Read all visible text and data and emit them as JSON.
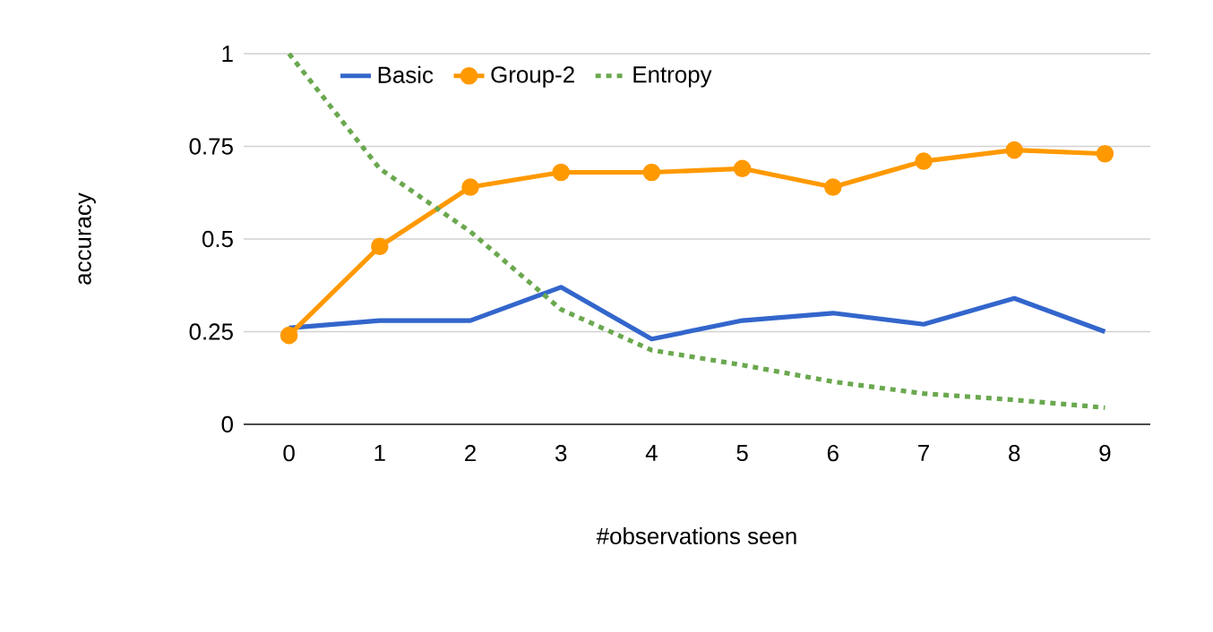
{
  "chart_data": {
    "type": "line",
    "xlabel": "#observations seen",
    "ylabel": "accuracy",
    "categories": [
      "0",
      "1",
      "2",
      "3",
      "4",
      "5",
      "6",
      "7",
      "8",
      "9"
    ],
    "series": [
      {
        "name": "Basic",
        "color": "#3366cc",
        "marker": "none",
        "line_style": "solid",
        "values": [
          0.26,
          0.28,
          0.28,
          0.37,
          0.23,
          0.28,
          0.3,
          0.27,
          0.34,
          0.25
        ]
      },
      {
        "name": "Group-2",
        "color": "#ff9900",
        "marker": "circle",
        "line_style": "solid",
        "values": [
          0.24,
          0.48,
          0.64,
          0.68,
          0.68,
          0.69,
          0.64,
          0.71,
          0.74,
          0.73
        ]
      },
      {
        "name": "Entropy",
        "color": "#6aa84f",
        "marker": "none",
        "line_style": "dotted",
        "values": [
          1.0,
          0.69,
          0.52,
          0.31,
          0.2,
          0.16,
          0.115,
          0.083,
          0.066,
          0.045
        ]
      }
    ],
    "ylim": [
      0,
      1
    ],
    "yticks": [
      0,
      0.25,
      0.5,
      0.75,
      1
    ],
    "grid": "y",
    "legend": "top"
  }
}
